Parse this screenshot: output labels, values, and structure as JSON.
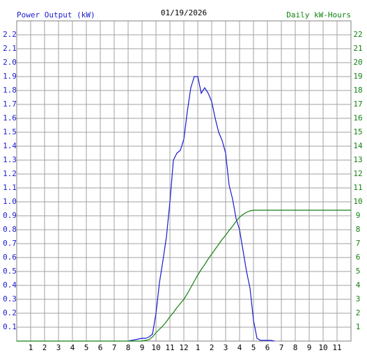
{
  "chart_data": {
    "type": "line",
    "title": "01/19/2026",
    "y_label": "Power Output (kW)",
    "y2_label": "Daily kW-Hours",
    "grid": true,
    "xlim": [
      0,
      24
    ],
    "xticks": [
      1,
      2,
      3,
      4,
      5,
      6,
      7,
      8,
      9,
      10,
      11,
      12,
      {
        "value": 13,
        "label": "1"
      },
      {
        "value": 14,
        "label": "2"
      },
      {
        "value": 15,
        "label": "3"
      },
      {
        "value": 16,
        "label": "4"
      },
      {
        "value": 17,
        "label": "5"
      },
      {
        "value": 18,
        "label": "6"
      },
      {
        "value": 19,
        "label": "7"
      },
      {
        "value": 20,
        "label": "8"
      },
      {
        "value": 21,
        "label": "9"
      },
      {
        "value": 22,
        "label": "10"
      },
      {
        "value": 23,
        "label": "11"
      }
    ],
    "ylim": [
      0,
      2.3
    ],
    "yticks": [
      0.1,
      0.2,
      0.3,
      0.4,
      0.5,
      0.6,
      0.7,
      0.8,
      0.9,
      {
        "value": 1,
        "label": "1.0"
      },
      1.1,
      1.2,
      1.3,
      1.4,
      1.5,
      1.6,
      1.7,
      1.8,
      1.9,
      {
        "value": 2,
        "label": "2.0"
      },
      2.1,
      2.2
    ],
    "y2lim": [
      0,
      23
    ],
    "y2ticks": [
      1,
      2,
      3,
      4,
      5,
      6,
      7,
      8,
      9,
      10,
      11,
      12,
      13,
      14,
      15,
      16,
      17,
      18,
      19,
      20,
      21,
      22
    ],
    "y_color": "#1a1ad0",
    "y2_color": "#108010",
    "x": [
      0,
      8,
      8.25,
      8.5,
      8.75,
      9,
      9.25,
      9.5,
      9.75,
      10,
      10.25,
      10.5,
      10.75,
      11,
      11.25,
      11.5,
      11.75,
      12,
      12.25,
      12.5,
      12.75,
      13,
      13.25,
      13.5,
      13.75,
      14,
      14.25,
      14.5,
      14.75,
      15,
      15.25,
      15.5,
      15.75,
      16,
      16.25,
      16.5,
      16.75,
      17,
      17.25,
      17.5,
      17.75,
      18,
      18.25,
      18.5,
      24
    ],
    "series": [
      {
        "color": "#1a1ad0",
        "values": [
          null,
          0,
          0.005,
          0.01,
          0.015,
          0.02,
          0.02,
          0.03,
          0.05,
          0.2,
          0.42,
          0.58,
          0.75,
          1.0,
          1.3,
          1.35,
          1.37,
          1.45,
          1.65,
          1.82,
          1.9,
          1.9,
          1.78,
          1.82,
          1.78,
          1.72,
          1.6,
          1.5,
          1.44,
          1.35,
          1.12,
          1.02,
          0.88,
          0.8,
          0.65,
          0.5,
          0.38,
          0.15,
          0.02,
          0.005,
          0.005,
          0.005,
          0.005,
          0,
          null
        ]
      },
      {
        "color": "#108010",
        "axis": "y2",
        "values": [
          0,
          0,
          0,
          0,
          0,
          0,
          0.05,
          0.1,
          0.3,
          0.6,
          0.85,
          1.1,
          1.4,
          1.75,
          2.05,
          2.4,
          2.7,
          3.0,
          3.4,
          3.85,
          4.3,
          4.75,
          5.15,
          5.5,
          5.9,
          6.25,
          6.6,
          6.95,
          7.3,
          7.6,
          7.95,
          8.25,
          8.6,
          8.9,
          9.1,
          9.25,
          9.35,
          9.4,
          9.4,
          9.4,
          9.4,
          9.4,
          9.4,
          9.4,
          9.4
        ]
      }
    ]
  }
}
